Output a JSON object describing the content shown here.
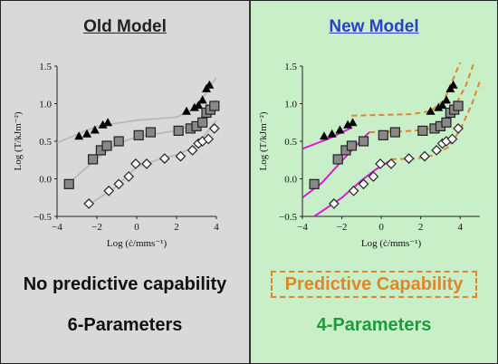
{
  "left_panel": {
    "heading": "Old Model",
    "capability": "No predictive capability",
    "parameters": "6-Parameters"
  },
  "right_panel": {
    "heading": "New Model",
    "capability": "Predictive Capability",
    "parameters": "4-Parameters"
  },
  "colors": {
    "old_model_bg": "#d9d9d9",
    "new_model_bg": "#c9efc9",
    "new_model_heading": "#2b3fc7",
    "predictive_orange": "#e0862a",
    "parameters_green": "#1e9b3a",
    "fit_grey": "#b8b8b8",
    "fit_magenta": "#d61fd0",
    "fit_orange_dashed": "#e0862a"
  },
  "chart_data": [
    {
      "type": "scatter",
      "panel": "Old Model",
      "xlabel": "Log (ċ/mms⁻¹)",
      "ylabel": "Log (T/kJm⁻²)",
      "xlim": [
        -4,
        4
      ],
      "ylim": [
        -0.5,
        1.5
      ],
      "xticks": [
        "−4",
        "−2",
        "0",
        "2",
        "4"
      ],
      "yticks": [
        "−0.5",
        "0.0",
        "0.5",
        "1.0",
        "1.5"
      ],
      "series": [
        {
          "marker": "triangle",
          "points": [
            [
              -2.9,
              0.57
            ],
            [
              -2.5,
              0.6
            ],
            [
              -2.1,
              0.65
            ],
            [
              -1.7,
              0.72
            ],
            [
              -1.45,
              0.75
            ],
            [
              2.5,
              0.9
            ],
            [
              2.9,
              0.95
            ],
            [
              3.1,
              0.98
            ],
            [
              3.3,
              1.05
            ],
            [
              3.5,
              1.2
            ],
            [
              3.65,
              1.25
            ]
          ]
        },
        {
          "marker": "square",
          "points": [
            [
              -3.4,
              -0.07
            ],
            [
              -2.2,
              0.26
            ],
            [
              -1.8,
              0.38
            ],
            [
              -1.5,
              0.44
            ],
            [
              -0.9,
              0.5
            ],
            [
              0.1,
              0.58
            ],
            [
              0.7,
              0.62
            ],
            [
              2.1,
              0.64
            ],
            [
              2.7,
              0.67
            ],
            [
              3.0,
              0.7
            ],
            [
              3.3,
              0.75
            ],
            [
              3.5,
              0.88
            ],
            [
              3.7,
              0.92
            ],
            [
              3.9,
              0.97
            ]
          ]
        },
        {
          "marker": "diamond",
          "points": [
            [
              -2.4,
              -0.33
            ],
            [
              -1.4,
              -0.16
            ],
            [
              -0.9,
              -0.07
            ],
            [
              -0.4,
              0.03
            ],
            [
              -0.05,
              0.2
            ],
            [
              0.5,
              0.2
            ],
            [
              1.4,
              0.27
            ],
            [
              2.2,
              0.3
            ],
            [
              2.8,
              0.38
            ],
            [
              3.1,
              0.47
            ],
            [
              3.3,
              0.5
            ],
            [
              3.6,
              0.53
            ],
            [
              3.9,
              0.67
            ]
          ]
        }
      ],
      "fits": [
        {
          "style": "solid-grey",
          "points": [
            [
              -4,
              0.48
            ],
            [
              -2,
              0.7
            ],
            [
              0,
              0.78
            ],
            [
              2,
              0.82
            ],
            [
              3,
              0.95
            ],
            [
              4,
              1.35
            ]
          ]
        },
        {
          "style": "solid-grey",
          "points": [
            [
              -3.5,
              -0.08
            ],
            [
              -2,
              0.27
            ],
            [
              -1,
              0.46
            ],
            [
              0,
              0.56
            ],
            [
              2,
              0.64
            ],
            [
              3,
              0.74
            ],
            [
              4,
              1.05
            ]
          ]
        },
        {
          "style": "solid-grey",
          "points": [
            [
              -2.5,
              -0.36
            ],
            [
              -1,
              -0.1
            ],
            [
              0,
              0.16
            ],
            [
              1,
              0.25
            ],
            [
              2,
              0.32
            ],
            [
              3,
              0.44
            ],
            [
              4,
              0.78
            ]
          ]
        }
      ]
    },
    {
      "type": "scatter",
      "panel": "New Model",
      "xlabel": "Log (ċ/mms⁻¹)",
      "ylabel": "Log (T/kJm⁻²)",
      "xlim": [
        -4,
        5
      ],
      "ylim": [
        -0.5,
        1.5
      ],
      "xticks": [
        "−4",
        "−2",
        "0",
        "2",
        "4"
      ],
      "yticks": [
        "−0.5",
        "0.0",
        "0.5",
        "1.0",
        "1.5"
      ],
      "series": [
        {
          "marker": "triangle",
          "points": [
            [
              -2.9,
              0.57
            ],
            [
              -2.5,
              0.6
            ],
            [
              -2.1,
              0.65
            ],
            [
              -1.7,
              0.72
            ],
            [
              -1.45,
              0.75
            ],
            [
              2.5,
              0.9
            ],
            [
              2.9,
              0.95
            ],
            [
              3.1,
              0.98
            ],
            [
              3.3,
              1.05
            ],
            [
              3.5,
              1.2
            ],
            [
              3.65,
              1.25
            ]
          ]
        },
        {
          "marker": "square",
          "points": [
            [
              -3.4,
              -0.07
            ],
            [
              -2.2,
              0.26
            ],
            [
              -1.8,
              0.38
            ],
            [
              -1.5,
              0.44
            ],
            [
              -0.9,
              0.5
            ],
            [
              0.1,
              0.58
            ],
            [
              0.7,
              0.62
            ],
            [
              2.1,
              0.64
            ],
            [
              2.7,
              0.67
            ],
            [
              3.0,
              0.7
            ],
            [
              3.3,
              0.75
            ],
            [
              3.5,
              0.88
            ],
            [
              3.7,
              0.92
            ],
            [
              3.9,
              0.97
            ]
          ]
        },
        {
          "marker": "diamond",
          "points": [
            [
              -2.4,
              -0.33
            ],
            [
              -1.4,
              -0.16
            ],
            [
              -0.9,
              -0.07
            ],
            [
              -0.4,
              0.03
            ],
            [
              -0.05,
              0.2
            ],
            [
              0.5,
              0.2
            ],
            [
              1.4,
              0.27
            ],
            [
              2.2,
              0.3
            ],
            [
              2.8,
              0.38
            ],
            [
              3.1,
              0.47
            ],
            [
              3.3,
              0.5
            ],
            [
              3.6,
              0.53
            ],
            [
              3.9,
              0.67
            ]
          ]
        }
      ],
      "fits": [
        {
          "style": "solid-magenta",
          "points": [
            [
              -4,
              0.4
            ],
            [
              -2.8,
              0.52
            ],
            [
              -1.5,
              0.68
            ]
          ]
        },
        {
          "style": "solid-magenta",
          "points": [
            [
              -4,
              -0.25
            ],
            [
              -3,
              -0.05
            ],
            [
              -2,
              0.24
            ],
            [
              -1,
              0.52
            ],
            [
              -0.6,
              0.62
            ]
          ]
        },
        {
          "style": "solid-magenta",
          "points": [
            [
              -3.4,
              -0.5
            ],
            [
              -2,
              -0.25
            ],
            [
              -1,
              -0.02
            ],
            [
              -0.3,
              0.12
            ],
            [
              0.5,
              0.25
            ]
          ]
        },
        {
          "style": "dashed-orange",
          "points": [
            [
              -1.5,
              0.84
            ],
            [
              0,
              0.85
            ],
            [
              1.5,
              0.86
            ],
            [
              2.5,
              0.9
            ],
            [
              3.2,
              1.05
            ],
            [
              3.6,
              1.3
            ],
            [
              4.0,
              1.55
            ]
          ]
        },
        {
          "style": "dashed-orange",
          "points": [
            [
              -0.6,
              0.62
            ],
            [
              1,
              0.63
            ],
            [
              2.2,
              0.65
            ],
            [
              3.0,
              0.72
            ],
            [
              3.6,
              0.9
            ],
            [
              4.3,
              1.25
            ],
            [
              4.7,
              1.55
            ]
          ]
        },
        {
          "style": "dashed-orange",
          "points": [
            [
              0.5,
              0.26
            ],
            [
              1.8,
              0.27
            ],
            [
              2.6,
              0.31
            ],
            [
              3.4,
              0.42
            ],
            [
              4.0,
              0.65
            ],
            [
              4.6,
              1.0
            ],
            [
              5.0,
              1.3
            ]
          ]
        }
      ]
    }
  ]
}
